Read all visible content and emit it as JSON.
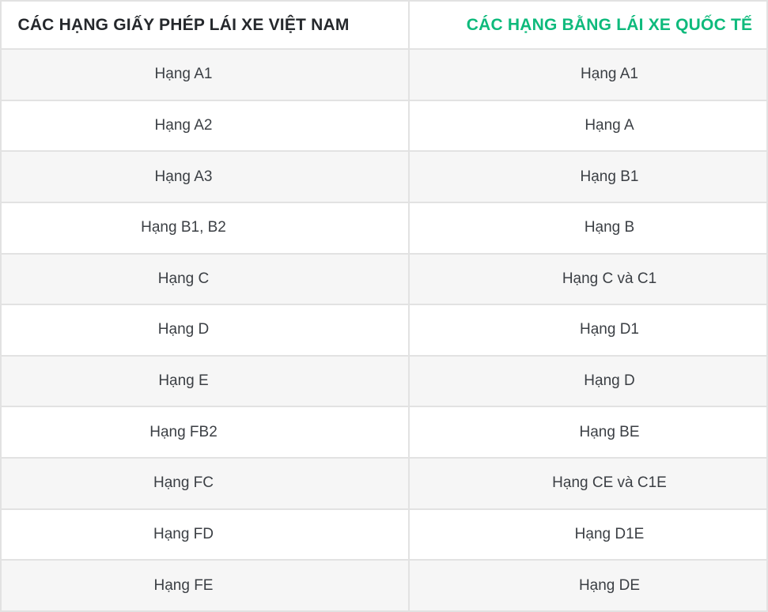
{
  "table": {
    "headers": [
      {
        "label": "CÁC HẠNG GIẤY PHÉP LÁI XE VIỆT NAM"
      },
      {
        "label": "CÁC HẠNG BẰNG LÁI XE QUỐC TẾ"
      }
    ],
    "rows": [
      {
        "vn": "Hạng A1",
        "intl": "Hạng A1"
      },
      {
        "vn": "Hạng A2",
        "intl": "Hạng A"
      },
      {
        "vn": "Hạng A3",
        "intl": "Hạng B1"
      },
      {
        "vn": "Hạng B1, B2",
        "intl": "Hạng B"
      },
      {
        "vn": "Hạng C",
        "intl": "Hạng C và C1"
      },
      {
        "vn": "Hạng D",
        "intl": "Hạng D1"
      },
      {
        "vn": "Hạng E",
        "intl": "Hạng D"
      },
      {
        "vn": "Hạng FB2",
        "intl": "Hạng BE"
      },
      {
        "vn": "Hạng FC",
        "intl": "Hạng CE và C1E"
      },
      {
        "vn": "Hạng FD",
        "intl": "Hạng D1E"
      },
      {
        "vn": "Hạng FE",
        "intl": "Hạng DE"
      }
    ],
    "colors": {
      "accent_green": "#0eba7c",
      "border": "#e2e2e2",
      "row_alt_bg": "#f6f6f6",
      "header_text": "#25282c",
      "cell_text": "#3b3f44"
    }
  }
}
